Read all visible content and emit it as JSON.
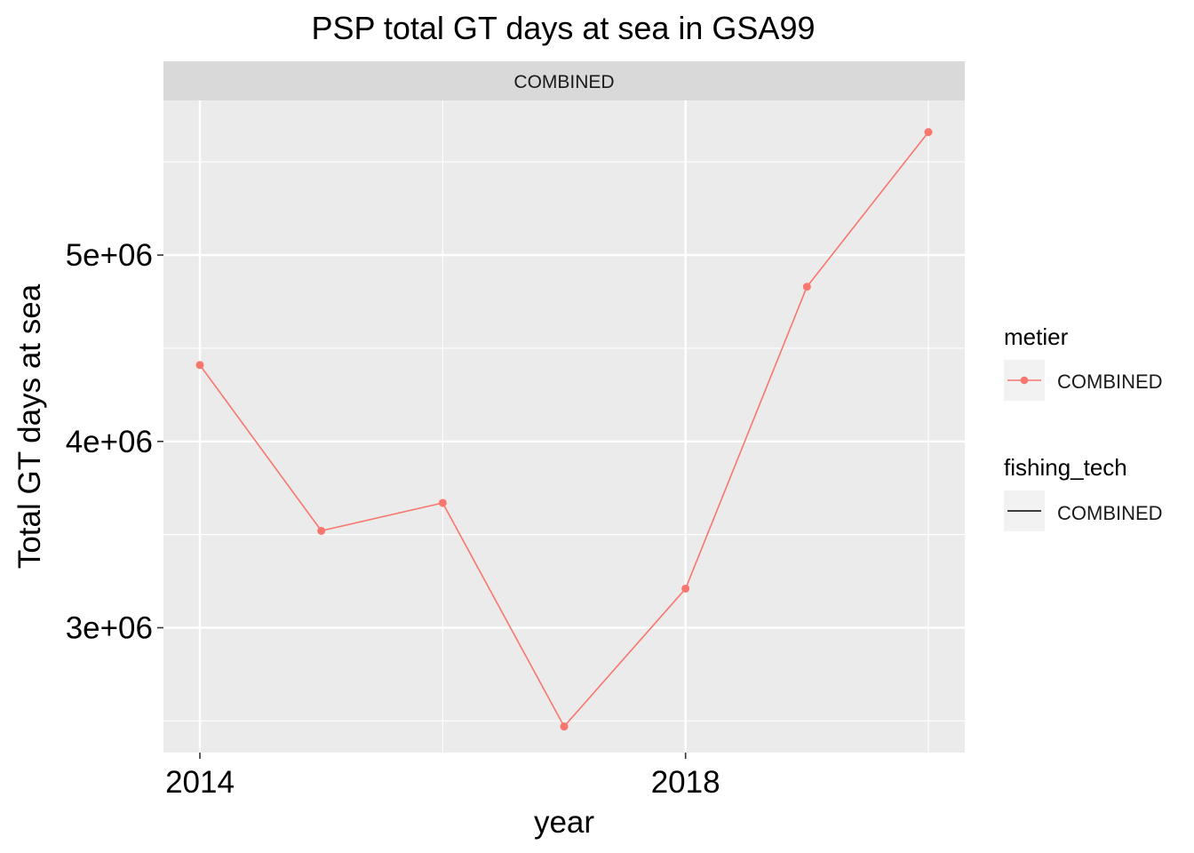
{
  "chart_data": {
    "type": "line",
    "title": "PSP total GT days at sea in GSA99",
    "facet_label": "COMBINED",
    "xlabel": "year",
    "ylabel": "Total GT days at sea",
    "x": [
      2014,
      2015,
      2016,
      2017,
      2018,
      2019,
      2020
    ],
    "series": [
      {
        "name": "COMBINED",
        "values": [
          4410000,
          3520000,
          3670000,
          2470000,
          3210000,
          4830000,
          5660000
        ]
      }
    ],
    "xlim": [
      2013.7,
      2020.3
    ],
    "ylim": [
      2330000,
      5830000
    ],
    "x_ticks": [
      2014,
      2018
    ],
    "x_tick_labels": [
      "2014",
      "2018"
    ],
    "x_minor_ticks": [
      2016,
      2020
    ],
    "y_ticks": [
      3000000,
      4000000,
      5000000
    ],
    "y_tick_labels": [
      "3e+06",
      "4e+06",
      "5e+06"
    ],
    "y_minor_ticks": [
      2500000,
      3500000,
      4500000,
      5500000
    ],
    "grid": true,
    "legend_position": "right",
    "legends": [
      {
        "title": "metier",
        "label": "COMBINED",
        "key": "line-point"
      },
      {
        "title": "fishing_tech",
        "label": "COMBINED",
        "key": "line"
      }
    ],
    "colors": {
      "series": "#F8766D",
      "panel_background": "#EBEBEB",
      "strip_background": "#D9D9D9",
      "grid": "#FFFFFF",
      "legend_key_background": "#F2F2F2",
      "linetype_key": "#000000"
    }
  }
}
